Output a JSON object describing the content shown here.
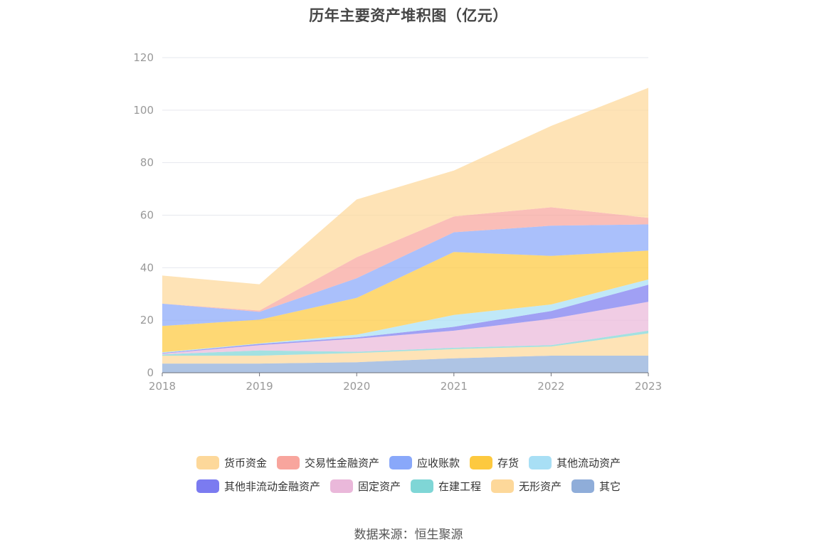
{
  "chart_data": {
    "type": "area",
    "stacked": true,
    "title": "历年主要资产堆积图（亿元）",
    "x": [
      "2018",
      "2019",
      "2020",
      "2021",
      "2022",
      "2023"
    ],
    "ylim": [
      0,
      120
    ],
    "yticks": [
      0,
      20,
      40,
      60,
      80,
      100,
      120
    ],
    "grid": true,
    "legend_position": "bottom",
    "series": [
      {
        "name": "其它",
        "color": "#8fadd9",
        "values": [
          3.5,
          3.5,
          4.0,
          5.5,
          6.5,
          6.5
        ]
      },
      {
        "name": "无形资产",
        "color": "#fdd89a",
        "values": [
          3.0,
          3.0,
          3.5,
          3.5,
          3.5,
          8.5
        ]
      },
      {
        "name": "在建工程",
        "color": "#7fd6d6",
        "values": [
          0.5,
          2.0,
          0.5,
          0.5,
          0.5,
          1.0
        ]
      },
      {
        "name": "固定资产",
        "color": "#eab8da",
        "values": [
          0.3,
          2.0,
          5.0,
          6.5,
          10.0,
          11.0
        ]
      },
      {
        "name": "其他非流动金融资产",
        "color": "#7b7bf0",
        "values": [
          0.2,
          0.5,
          0.5,
          1.5,
          3.0,
          6.5
        ]
      },
      {
        "name": "其他流动资产",
        "color": "#a8dff5",
        "values": [
          0.3,
          0.2,
          1.0,
          4.5,
          2.5,
          2.0
        ]
      },
      {
        "name": "存货",
        "color": "#fdc93f",
        "values": [
          10.0,
          9.0,
          14.0,
          24.0,
          18.5,
          11.0
        ]
      },
      {
        "name": "应收账款",
        "color": "#89a8fa",
        "values": [
          8.5,
          3.0,
          7.5,
          7.5,
          11.5,
          10.0
        ]
      },
      {
        "name": "交易性金融资产",
        "color": "#f8a59d",
        "values": [
          0.0,
          0.5,
          8.0,
          6.0,
          7.0,
          2.5
        ]
      },
      {
        "name": "货币资金",
        "color": "#fdd89a",
        "values": [
          10.7,
          10.0,
          22.0,
          17.5,
          31.0,
          49.5
        ]
      }
    ]
  },
  "legend": {
    "row1": [
      {
        "label": "货币资金",
        "color": "#fdd89a"
      },
      {
        "label": "交易性金融资产",
        "color": "#f8a59d"
      },
      {
        "label": "应收账款",
        "color": "#89a8fa"
      },
      {
        "label": "存货",
        "color": "#fdc93f"
      },
      {
        "label": "其他流动资产",
        "color": "#a8dff5"
      }
    ],
    "row2": [
      {
        "label": "其他非流动金融资产",
        "color": "#7b7bf0"
      },
      {
        "label": "固定资产",
        "color": "#eab8da"
      },
      {
        "label": "在建工程",
        "color": "#7fd6d6"
      },
      {
        "label": "无形资产",
        "color": "#fdd89a"
      },
      {
        "label": "其它",
        "color": "#8fadd9"
      }
    ]
  },
  "source": "数据来源：恒生聚源"
}
